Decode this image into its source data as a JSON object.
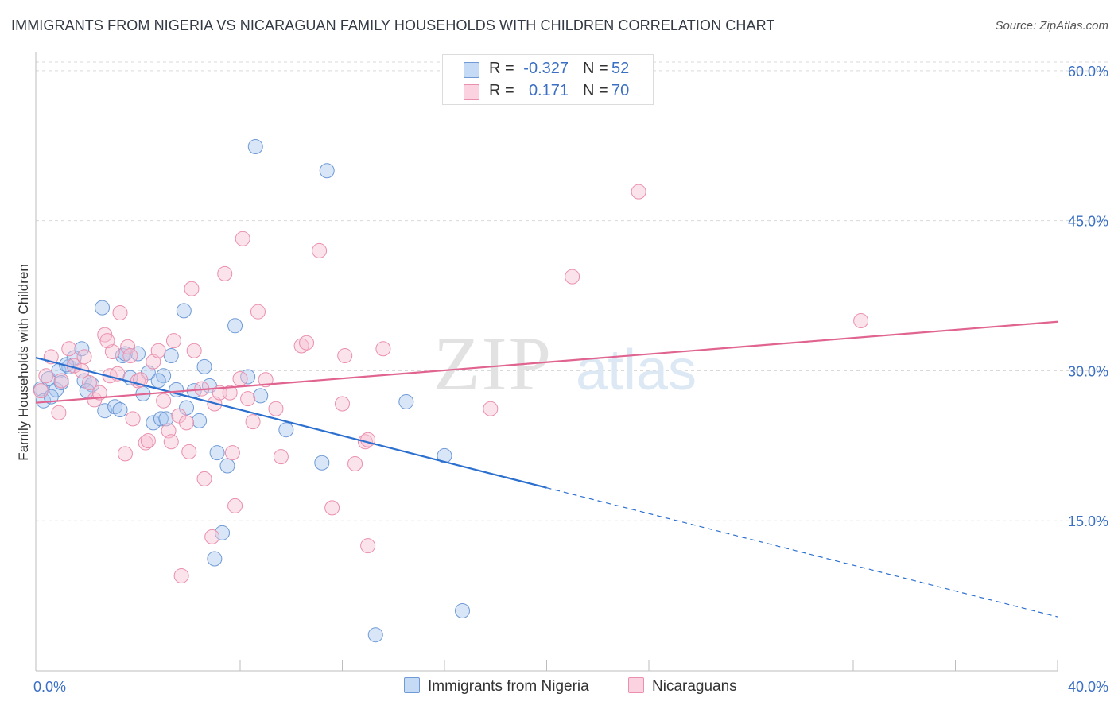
{
  "title": "IMMIGRANTS FROM NIGERIA VS NICARAGUAN FAMILY HOUSEHOLDS WITH CHILDREN CORRELATION CHART",
  "source": "Source: ZipAtlas.com",
  "watermark": {
    "zip": "ZIP",
    "atlas": "atlas"
  },
  "colors": {
    "blue_fill": "#a9c8f0",
    "blue_stroke": "#6f9ad6",
    "blue_line": "#2b6fcf",
    "pink_fill": "#f7c1d3",
    "pink_stroke": "#ea8fae",
    "pink_line": "#e0648f",
    "tick_label": "#3a6fc4",
    "grid": "#d9d9d9"
  },
  "legend": {
    "rows": [
      {
        "r_label": "R =",
        "r_value": "-0.327",
        "n_label": "N =",
        "n_value": "52",
        "color": "#a9c8f0"
      },
      {
        "r_label": "R =",
        "r_value": "0.171",
        "n_label": "N =",
        "n_value": "70",
        "color": "#f7c1d3"
      }
    ]
  },
  "chart_data": {
    "type": "scatter",
    "title": "IMMIGRANTS FROM NIGERIA VS NICARAGUAN FAMILY HOUSEHOLDS WITH CHILDREN CORRELATION CHART",
    "xlabel": "",
    "ylabel": "Family Households with Children",
    "xlim": [
      0,
      40
    ],
    "ylim": [
      0,
      61.5
    ],
    "x_tick_labels": [
      "0.0%",
      "40.0%"
    ],
    "y_ticks": [
      15,
      30,
      45,
      60
    ],
    "y_tick_labels": [
      "15.0%",
      "30.0%",
      "45.0%",
      "60.0%"
    ],
    "grid": true,
    "legend_position": "top-center",
    "series": [
      {
        "name": "Immigrants from Nigeria",
        "color": "#a9c8f0",
        "points": [
          [
            0.2,
            28.2
          ],
          [
            0.3,
            27.0
          ],
          [
            0.5,
            29.2
          ],
          [
            0.8,
            28.1
          ],
          [
            0.9,
            30.0
          ],
          [
            1.3,
            30.4
          ],
          [
            1.5,
            31.3
          ],
          [
            1.8,
            32.2
          ],
          [
            1.9,
            29.0
          ],
          [
            2.2,
            28.6
          ],
          [
            2.6,
            36.3
          ],
          [
            2.7,
            26.0
          ],
          [
            3.1,
            26.4
          ],
          [
            3.3,
            26.1
          ],
          [
            3.4,
            31.5
          ],
          [
            3.5,
            31.7
          ],
          [
            3.7,
            29.3
          ],
          [
            4.0,
            31.7
          ],
          [
            4.2,
            27.7
          ],
          [
            4.4,
            29.8
          ],
          [
            4.6,
            24.8
          ],
          [
            4.9,
            25.2
          ],
          [
            5.0,
            29.5
          ],
          [
            5.1,
            25.2
          ],
          [
            5.3,
            31.5
          ],
          [
            5.5,
            28.1
          ],
          [
            5.8,
            36.0
          ],
          [
            5.9,
            26.3
          ],
          [
            6.2,
            28.0
          ],
          [
            6.4,
            25.0
          ],
          [
            6.6,
            30.4
          ],
          [
            6.8,
            28.5
          ],
          [
            7.0,
            11.2
          ],
          [
            7.1,
            21.8
          ],
          [
            7.3,
            13.8
          ],
          [
            7.5,
            20.5
          ],
          [
            7.8,
            34.5
          ],
          [
            8.3,
            29.4
          ],
          [
            8.6,
            52.4
          ],
          [
            8.8,
            27.5
          ],
          [
            9.8,
            24.1
          ],
          [
            11.2,
            20.8
          ],
          [
            11.4,
            50.0
          ],
          [
            13.3,
            3.6
          ],
          [
            14.5,
            26.9
          ],
          [
            16.0,
            21.5
          ],
          [
            16.7,
            6.0
          ],
          [
            1.0,
            28.8
          ],
          [
            1.2,
            30.6
          ],
          [
            2.0,
            28.0
          ],
          [
            0.6,
            27.4
          ],
          [
            4.8,
            29.0
          ]
        ],
        "trend": {
          "x1": 0,
          "y1": 31.3,
          "x2": 20,
          "y2": 18.3,
          "x_dash_end": 40,
          "y_dash_end": 5.4
        }
      },
      {
        "name": "Nicaraguans",
        "color": "#f7c1d3",
        "points": [
          [
            0.2,
            28.0
          ],
          [
            0.4,
            29.5
          ],
          [
            0.6,
            31.4
          ],
          [
            0.9,
            25.8
          ],
          [
            1.0,
            29.0
          ],
          [
            1.3,
            32.2
          ],
          [
            1.5,
            30.5
          ],
          [
            1.8,
            30.0
          ],
          [
            1.9,
            31.4
          ],
          [
            2.1,
            28.8
          ],
          [
            2.3,
            27.1
          ],
          [
            2.5,
            27.8
          ],
          [
            2.7,
            33.6
          ],
          [
            2.9,
            29.5
          ],
          [
            3.0,
            31.9
          ],
          [
            3.2,
            29.7
          ],
          [
            3.3,
            35.8
          ],
          [
            3.5,
            21.7
          ],
          [
            3.6,
            32.4
          ],
          [
            3.7,
            31.5
          ],
          [
            3.8,
            25.2
          ],
          [
            4.0,
            29.0
          ],
          [
            4.1,
            29.1
          ],
          [
            4.3,
            22.8
          ],
          [
            4.4,
            23.0
          ],
          [
            4.6,
            30.9
          ],
          [
            4.8,
            32.0
          ],
          [
            5.0,
            27.0
          ],
          [
            5.2,
            24.0
          ],
          [
            5.3,
            22.9
          ],
          [
            5.6,
            25.5
          ],
          [
            5.7,
            9.5
          ],
          [
            5.9,
            24.8
          ],
          [
            6.0,
            21.9
          ],
          [
            6.1,
            38.2
          ],
          [
            6.2,
            32.0
          ],
          [
            6.5,
            28.2
          ],
          [
            6.6,
            19.2
          ],
          [
            6.9,
            13.4
          ],
          [
            7.0,
            26.7
          ],
          [
            7.2,
            27.8
          ],
          [
            7.4,
            39.7
          ],
          [
            7.6,
            27.8
          ],
          [
            7.7,
            21.8
          ],
          [
            7.8,
            16.5
          ],
          [
            8.0,
            29.2
          ],
          [
            8.1,
            43.2
          ],
          [
            8.3,
            27.2
          ],
          [
            8.5,
            24.9
          ],
          [
            8.7,
            35.9
          ],
          [
            9.4,
            26.2
          ],
          [
            9.6,
            21.4
          ],
          [
            10.4,
            32.5
          ],
          [
            10.6,
            32.8
          ],
          [
            11.1,
            42.0
          ],
          [
            11.6,
            16.3
          ],
          [
            12.0,
            26.7
          ],
          [
            12.1,
            31.5
          ],
          [
            12.5,
            20.7
          ],
          [
            12.9,
            22.9
          ],
          [
            13.0,
            12.5
          ],
          [
            13.6,
            32.2
          ],
          [
            13.0,
            23.1
          ],
          [
            17.8,
            26.2
          ],
          [
            21.0,
            39.4
          ],
          [
            23.6,
            47.9
          ],
          [
            32.3,
            35.0
          ],
          [
            9.0,
            29.1
          ],
          [
            2.8,
            33.0
          ],
          [
            5.4,
            33.0
          ]
        ],
        "trend": {
          "x1": 0,
          "y1": 26.8,
          "x2": 40,
          "y2": 34.9
        }
      }
    ]
  },
  "bottom_legend": [
    {
      "label": "Immigrants from Nigeria",
      "color": "#a9c8f0"
    },
    {
      "label": "Nicaraguans",
      "color": "#f7c1d3"
    }
  ]
}
